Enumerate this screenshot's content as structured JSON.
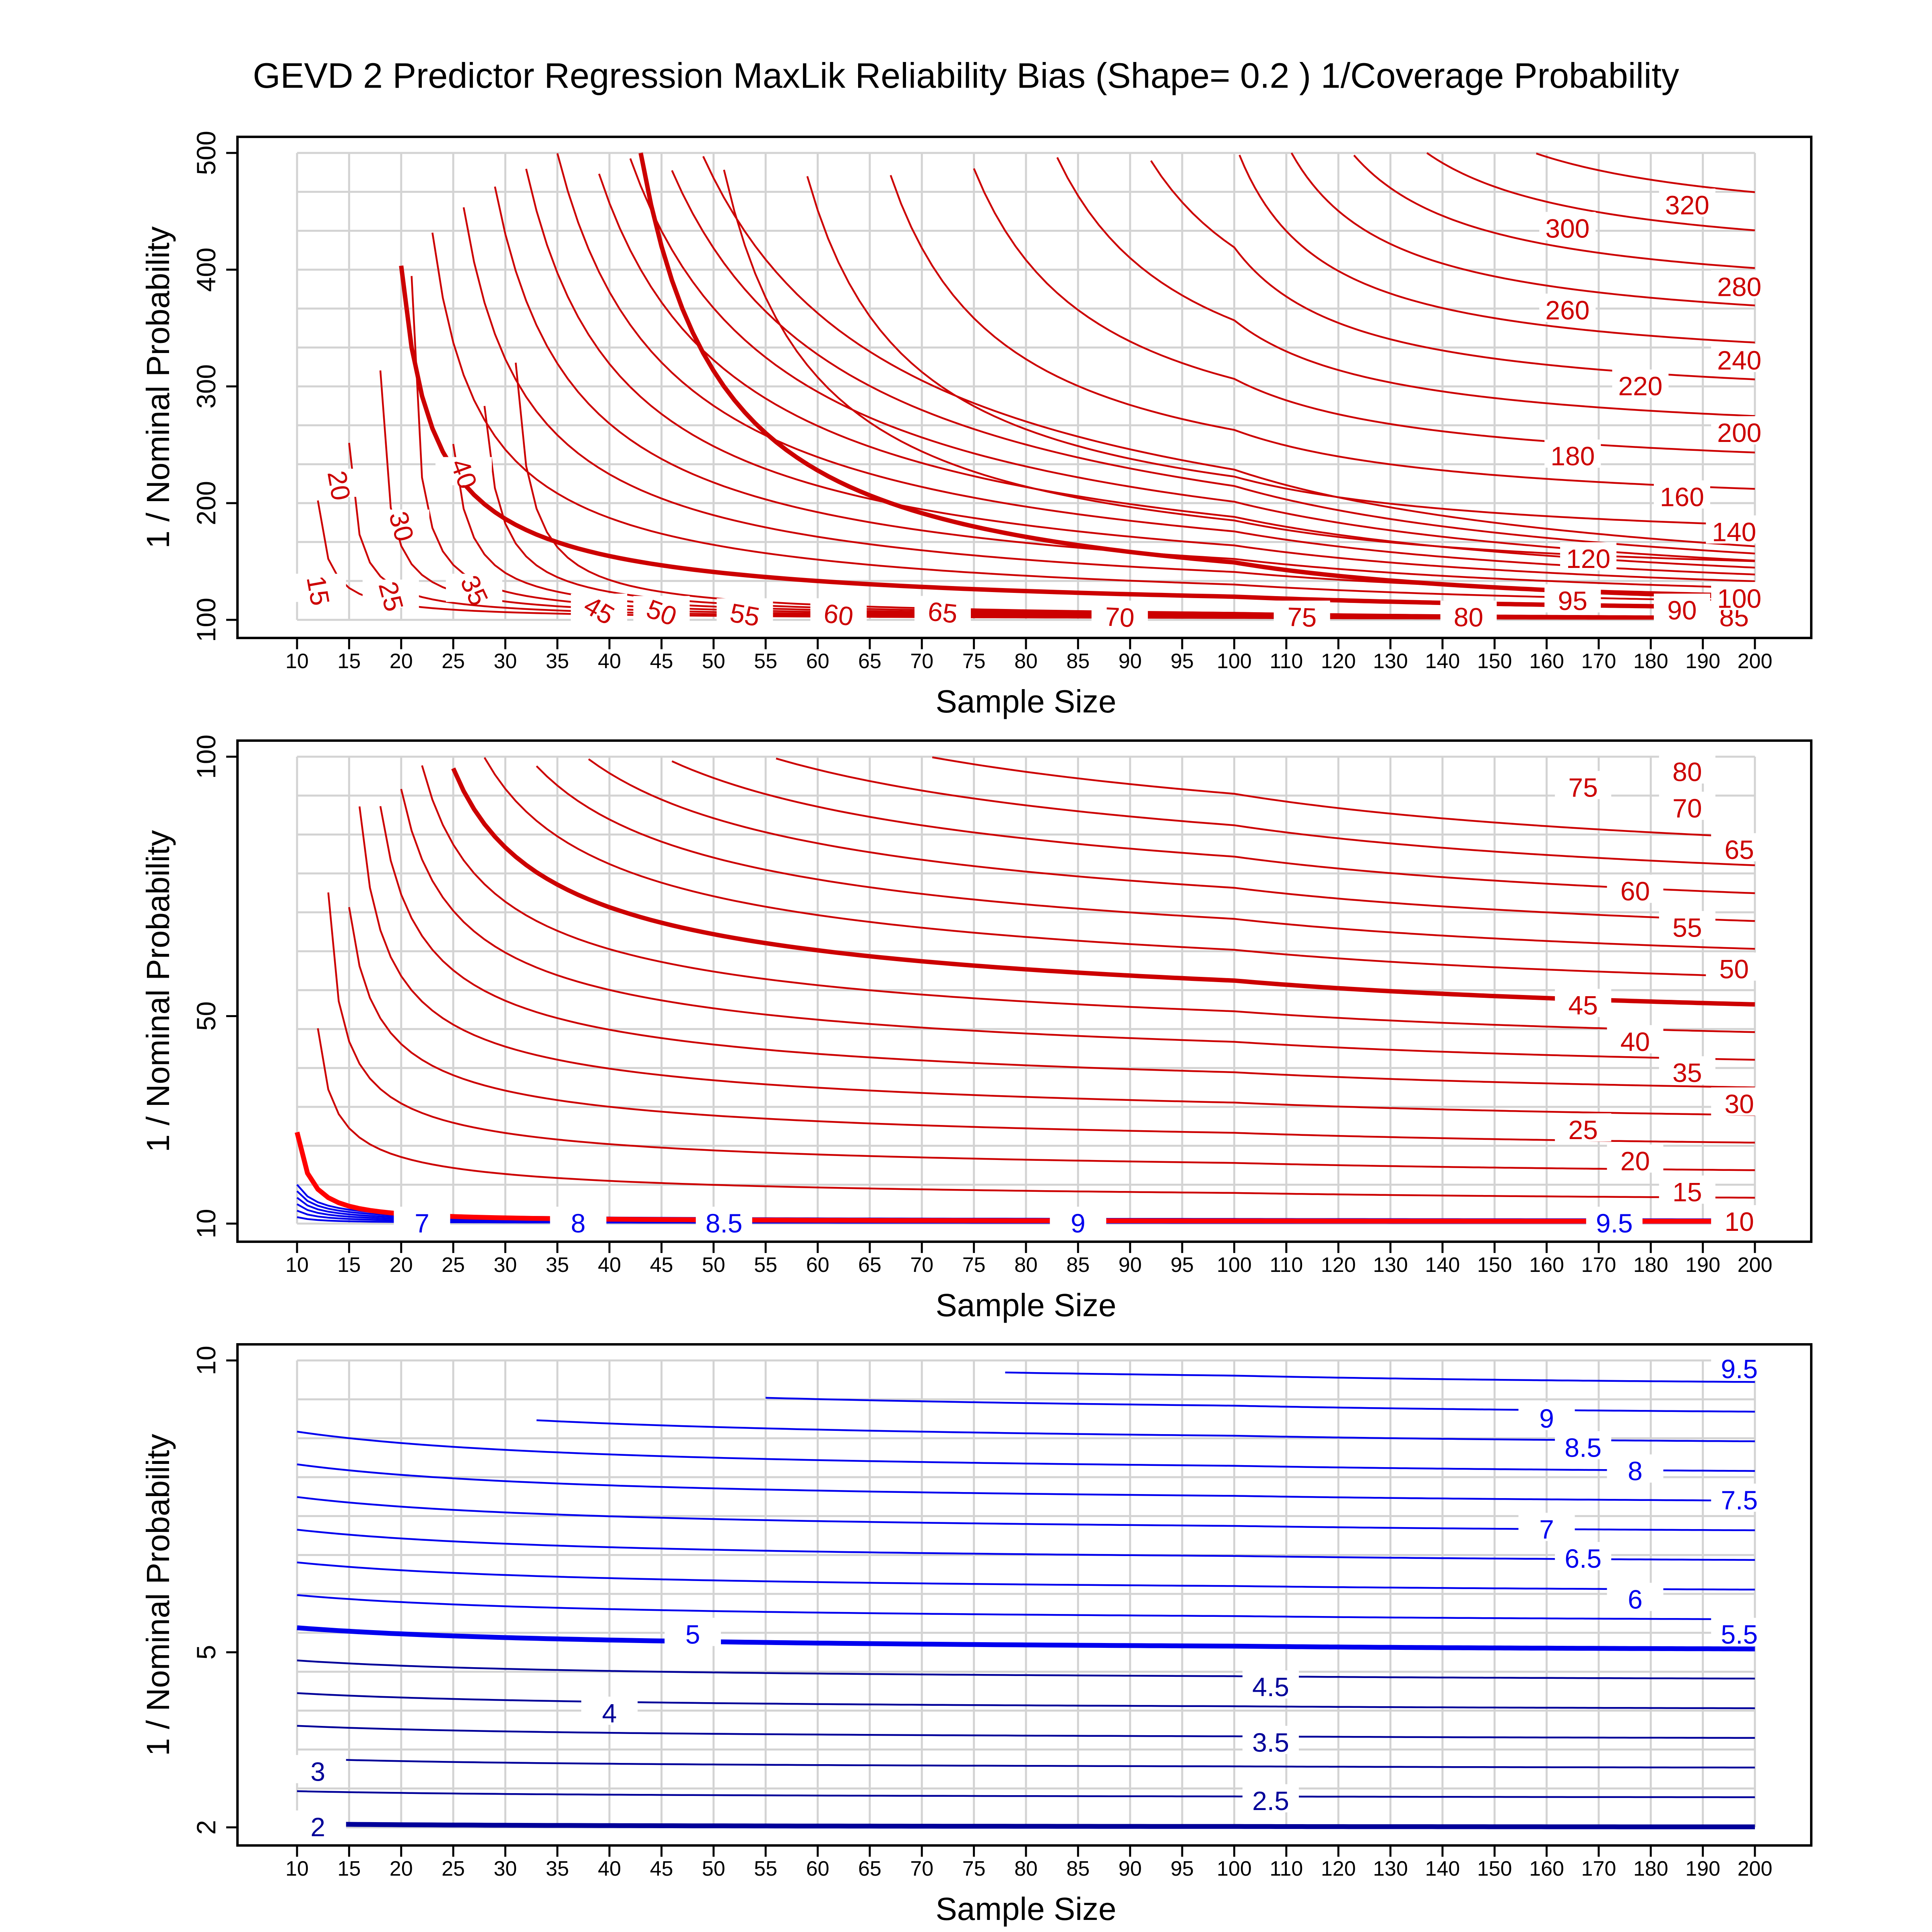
{
  "figure_title": "GEVD 2 Predictor Regression MaxLik Reliability Bias (Shape= 0.2 ) 1/Coverage Probability",
  "colors": {
    "red": "#cc0000",
    "bright_red": "#ff0000",
    "blue": "#0000ee",
    "navy": "#000099",
    "grid": "#d3d3d3",
    "frame": "#000000"
  },
  "x_ticks": [
    "10",
    "15",
    "20",
    "25",
    "30",
    "35",
    "40",
    "45",
    "50",
    "55",
    "60",
    "65",
    "70",
    "75",
    "80",
    "85",
    "90",
    "95",
    "100",
    "110",
    "120",
    "130",
    "140",
    "150",
    "160",
    "170",
    "180",
    "190",
    "200"
  ],
  "chart_data": [
    {
      "type": "contour",
      "xlabel": "Sample Size",
      "ylabel": "1 / Nominal Probability",
      "x_tick_values": [
        10,
        15,
        20,
        25,
        30,
        35,
        40,
        45,
        50,
        55,
        60,
        65,
        70,
        75,
        80,
        85,
        90,
        95,
        100,
        110,
        120,
        130,
        140,
        150,
        160,
        170,
        180,
        190,
        200
      ],
      "y_ticks": [
        100,
        200,
        300,
        400,
        500
      ],
      "y_tick_labels": [
        "100",
        "200",
        "300",
        "400",
        "500"
      ],
      "ylim": [
        100,
        500
      ],
      "grid": true,
      "contour_levels": [
        15,
        20,
        25,
        30,
        35,
        40,
        45,
        50,
        55,
        60,
        65,
        70,
        75,
        80,
        85,
        90,
        95,
        100,
        120,
        140,
        160,
        180,
        200,
        220,
        240,
        260,
        280,
        300,
        320
      ],
      "contour_labels": [
        {
          "text": "15",
          "x": 12,
          "y": 125,
          "color": "red",
          "angle": 80
        },
        {
          "text": "20",
          "x": 14,
          "y": 215,
          "color": "red",
          "angle": 80
        },
        {
          "text": "25",
          "x": 19,
          "y": 120,
          "color": "red",
          "angle": 75
        },
        {
          "text": "30",
          "x": 20,
          "y": 180,
          "color": "red",
          "angle": 75
        },
        {
          "text": "35",
          "x": 27,
          "y": 125,
          "color": "red",
          "angle": 65
        },
        {
          "text": "40",
          "x": 26,
          "y": 225,
          "color": "red",
          "angle": 70
        },
        {
          "text": "45",
          "x": 39,
          "y": 108,
          "color": "red",
          "angle": 30
        },
        {
          "text": "50",
          "x": 45,
          "y": 106,
          "color": "red",
          "angle": 20
        },
        {
          "text": "55",
          "x": 53,
          "y": 104,
          "color": "red",
          "angle": 10
        },
        {
          "text": "60",
          "x": 62,
          "y": 104,
          "color": "red",
          "angle": 8
        },
        {
          "text": "65",
          "x": 72,
          "y": 106,
          "color": "red",
          "angle": 6
        },
        {
          "text": "70",
          "x": 89,
          "y": 102,
          "color": "red",
          "angle": 3
        },
        {
          "text": "75",
          "x": 113,
          "y": 102,
          "color": "red",
          "angle": 2
        },
        {
          "text": "80",
          "x": 145,
          "y": 102,
          "color": "red",
          "angle": 1
        },
        {
          "text": "85",
          "x": 196,
          "y": 102,
          "color": "red",
          "angle": 0
        },
        {
          "text": "90",
          "x": 186,
          "y": 108,
          "color": "red",
          "angle": 0
        },
        {
          "text": "95",
          "x": 165,
          "y": 116,
          "color": "red",
          "angle": 0
        },
        {
          "text": "100",
          "x": 197,
          "y": 118,
          "color": "red",
          "angle": 0
        },
        {
          "text": "120",
          "x": 168,
          "y": 152,
          "color": "red",
          "angle": 0
        },
        {
          "text": "140",
          "x": 196,
          "y": 175,
          "color": "red",
          "angle": 0
        },
        {
          "text": "160",
          "x": 186,
          "y": 205,
          "color": "red",
          "angle": 0
        },
        {
          "text": "180",
          "x": 165,
          "y": 240,
          "color": "red",
          "angle": 0
        },
        {
          "text": "200",
          "x": 197,
          "y": 260,
          "color": "red",
          "angle": 0
        },
        {
          "text": "220",
          "x": 178,
          "y": 300,
          "color": "red",
          "angle": 0
        },
        {
          "text": "240",
          "x": 197,
          "y": 322,
          "color": "red",
          "angle": 0
        },
        {
          "text": "260",
          "x": 164,
          "y": 365,
          "color": "red",
          "angle": 0
        },
        {
          "text": "280",
          "x": 197,
          "y": 385,
          "color": "red",
          "angle": 0
        },
        {
          "text": "300",
          "x": 164,
          "y": 435,
          "color": "red",
          "angle": 0
        },
        {
          "text": "320",
          "x": 187,
          "y": 455,
          "color": "red",
          "angle": 0
        }
      ]
    },
    {
      "type": "contour",
      "xlabel": "Sample Size",
      "ylabel": "1 / Nominal Probability",
      "x_tick_values": [
        10,
        15,
        20,
        25,
        30,
        35,
        40,
        45,
        50,
        55,
        60,
        65,
        70,
        75,
        80,
        85,
        90,
        95,
        100,
        110,
        120,
        130,
        140,
        150,
        160,
        170,
        180,
        190,
        200
      ],
      "y_ticks": [
        10,
        50,
        100
      ],
      "y_tick_labels": [
        "10",
        "50",
        "100"
      ],
      "ylim": [
        10,
        100
      ],
      "grid": true,
      "contour_levels": [
        7,
        7.5,
        8,
        8.5,
        9,
        9.5,
        10,
        15,
        20,
        25,
        30,
        35,
        40,
        45,
        50,
        55,
        60,
        65,
        70,
        75,
        80
      ],
      "contour_labels": [
        {
          "text": "7",
          "x": 22,
          "y": 10.0,
          "color": "blue",
          "angle": 0
        },
        {
          "text": "8",
          "x": 37,
          "y": 10.0,
          "color": "blue",
          "angle": 0
        },
        {
          "text": "8.5",
          "x": 51,
          "y": 10.0,
          "color": "blue",
          "angle": 0
        },
        {
          "text": "9",
          "x": 85,
          "y": 10.0,
          "color": "blue",
          "angle": 0
        },
        {
          "text": "9.5",
          "x": 173,
          "y": 10.0,
          "color": "blue",
          "angle": 0
        },
        {
          "text": "10",
          "x": 197,
          "y": 10.3,
          "color": "red",
          "angle": 0
        },
        {
          "text": "15",
          "x": 187,
          "y": 16,
          "color": "red",
          "angle": 0
        },
        {
          "text": "20",
          "x": 177,
          "y": 22,
          "color": "red",
          "angle": 0
        },
        {
          "text": "25",
          "x": 167,
          "y": 28,
          "color": "red",
          "angle": 0
        },
        {
          "text": "30",
          "x": 197,
          "y": 33,
          "color": "red",
          "angle": 0
        },
        {
          "text": "35",
          "x": 187,
          "y": 39,
          "color": "red",
          "angle": 0
        },
        {
          "text": "40",
          "x": 177,
          "y": 45,
          "color": "red",
          "angle": 0
        },
        {
          "text": "45",
          "x": 167,
          "y": 52,
          "color": "red",
          "angle": 0
        },
        {
          "text": "50",
          "x": 196,
          "y": 59,
          "color": "red",
          "angle": 0
        },
        {
          "text": "55",
          "x": 187,
          "y": 67,
          "color": "red",
          "angle": 0
        },
        {
          "text": "60",
          "x": 177,
          "y": 74,
          "color": "red",
          "angle": 0
        },
        {
          "text": "65",
          "x": 197,
          "y": 82,
          "color": "red",
          "angle": 0
        },
        {
          "text": "70",
          "x": 187,
          "y": 90,
          "color": "red",
          "angle": 0
        },
        {
          "text": "75",
          "x": 167,
          "y": 94,
          "color": "red",
          "angle": 0
        },
        {
          "text": "80",
          "x": 187,
          "y": 97,
          "color": "red",
          "angle": 0
        }
      ]
    },
    {
      "type": "contour",
      "xlabel": "Sample Size",
      "ylabel": "1 / Nominal Probability",
      "x_tick_values": [
        10,
        15,
        20,
        25,
        30,
        35,
        40,
        45,
        50,
        55,
        60,
        65,
        70,
        75,
        80,
        85,
        90,
        95,
        100,
        110,
        120,
        130,
        140,
        150,
        160,
        170,
        180,
        190,
        200
      ],
      "y_ticks": [
        2,
        5,
        10
      ],
      "y_tick_labels": [
        "2",
        "5",
        "10"
      ],
      "ylim": [
        2,
        10
      ],
      "grid": true,
      "contour_levels": [
        2,
        2.5,
        3,
        3.5,
        4,
        4.5,
        5,
        5.5,
        6,
        6.5,
        7,
        7.5,
        8,
        8.5,
        9,
        9.5
      ],
      "contour_labels": [
        {
          "text": "2",
          "x": 12,
          "y": 2.0,
          "color": "navy",
          "angle": 0
        },
        {
          "text": "2.5",
          "x": 107,
          "y": 2.45,
          "color": "navy",
          "angle": 0
        },
        {
          "text": "3",
          "x": 12,
          "y": 2.95,
          "color": "navy",
          "angle": 0
        },
        {
          "text": "3.5",
          "x": 107,
          "y": 3.45,
          "color": "navy",
          "angle": 0
        },
        {
          "text": "4",
          "x": 40,
          "y": 3.95,
          "color": "navy",
          "angle": 0
        },
        {
          "text": "4.5",
          "x": 107,
          "y": 4.4,
          "color": "navy",
          "angle": 0
        },
        {
          "text": "5",
          "x": 48,
          "y": 5.3,
          "color": "blue",
          "angle": 0
        },
        {
          "text": "5.5",
          "x": 197,
          "y": 5.3,
          "color": "blue",
          "angle": 0
        },
        {
          "text": "6",
          "x": 177,
          "y": 5.9,
          "color": "blue",
          "angle": 0
        },
        {
          "text": "6.5",
          "x": 167,
          "y": 6.6,
          "color": "blue",
          "angle": 0
        },
        {
          "text": "7",
          "x": 160,
          "y": 7.1,
          "color": "blue",
          "angle": 0
        },
        {
          "text": "7.5",
          "x": 197,
          "y": 7.6,
          "color": "blue",
          "angle": 0
        },
        {
          "text": "8",
          "x": 177,
          "y": 8.1,
          "color": "blue",
          "angle": 0
        },
        {
          "text": "8.5",
          "x": 167,
          "y": 8.5,
          "color": "blue",
          "angle": 0
        },
        {
          "text": "9",
          "x": 160,
          "y": 9.0,
          "color": "blue",
          "angle": 0
        },
        {
          "text": "9.5",
          "x": 197,
          "y": 9.85,
          "color": "blue",
          "angle": 0
        }
      ]
    }
  ]
}
